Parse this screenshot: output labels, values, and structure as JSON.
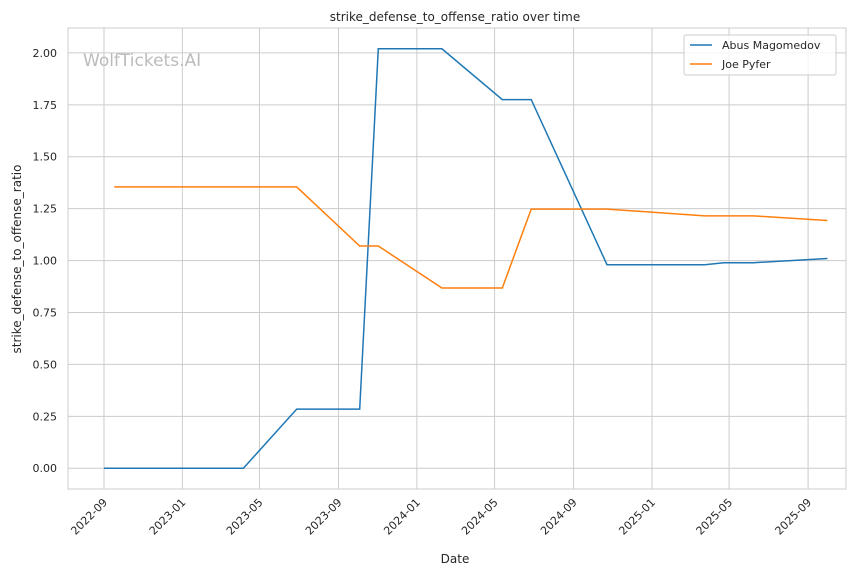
{
  "chart_data": {
    "type": "line",
    "title": "strike_defense_to_offense_ratio over time",
    "xlabel": "Date",
    "ylabel": "strike_defense_to_offense_ratio",
    "watermark": "WolfTickets.AI",
    "xlim": [
      "2022-07-07",
      "2025-10-30"
    ],
    "ylim": [
      -0.1,
      2.12
    ],
    "x_ticks": [
      "2022-09",
      "2023-01",
      "2023-05",
      "2023-09",
      "2024-01",
      "2024-05",
      "2024-09",
      "2025-01",
      "2025-05",
      "2025-09"
    ],
    "y_ticks": [
      "0.00",
      "0.25",
      "0.50",
      "0.75",
      "1.00",
      "1.25",
      "1.50",
      "1.75",
      "2.00"
    ],
    "grid": true,
    "legend_position": "top-right",
    "series": [
      {
        "name": "Abus Magomedov",
        "color": "#1f77b4",
        "x": [
          "2022-09-01",
          "2023-04-06",
          "2023-06-28",
          "2023-10-04",
          "2023-11-02",
          "2024-02-09",
          "2024-05-13",
          "2024-06-27",
          "2024-10-23",
          "2025-03-24",
          "2025-04-23",
          "2025-06-08",
          "2025-10-01"
        ],
        "y": [
          0.0,
          0.0,
          0.285,
          0.285,
          2.02,
          2.02,
          1.775,
          1.775,
          0.98,
          0.98,
          0.99,
          0.99,
          1.01
        ]
      },
      {
        "name": "Joe Pyfer",
        "color": "#ff7f0e",
        "x": [
          "2022-09-17",
          "2023-06-28",
          "2023-10-04",
          "2023-11-02",
          "2024-02-09",
          "2024-05-13",
          "2024-06-27",
          "2024-10-23",
          "2025-03-24",
          "2025-06-08",
          "2025-10-01"
        ],
        "y": [
          1.355,
          1.355,
          1.07,
          1.07,
          0.868,
          0.868,
          1.248,
          1.248,
          1.215,
          1.215,
          1.193
        ]
      }
    ]
  }
}
